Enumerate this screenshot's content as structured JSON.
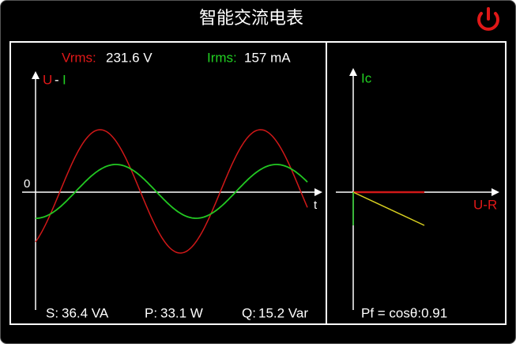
{
  "header": {
    "title": "智能交流电表"
  },
  "waveform": {
    "vrms_label": "Vrms:",
    "vrms_value": "231.6 V",
    "irms_label": "Irms:",
    "irms_value": "157 mA",
    "axis_u": "U",
    "axis_sep": "-",
    "axis_i": "I",
    "origin": "0",
    "axis_t": "t",
    "s_label": "S:",
    "s_value": "36.4 VA",
    "p_label": "P:",
    "p_value": "33.1 W",
    "q_label": "Q:",
    "q_value": "15.2 Var"
  },
  "phasor": {
    "axis_ic": "Ic",
    "axis_ur": "U-R",
    "pf": "Pf = cosθ:0.91"
  }
}
